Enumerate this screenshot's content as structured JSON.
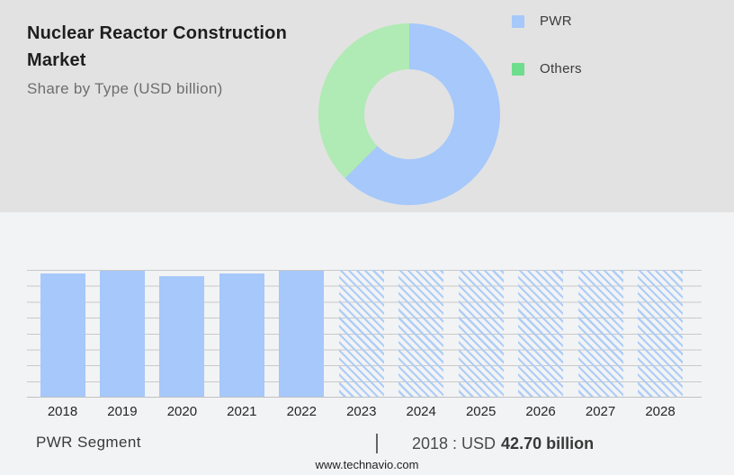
{
  "header": {
    "title": "Nuclear Reactor Construction Market",
    "subtitle": "Share by Type (USD billion)"
  },
  "legend": {
    "items": [
      {
        "label": "PWR",
        "color": "#a6c8fa"
      },
      {
        "label": "Others",
        "color": "#6edd8d"
      }
    ]
  },
  "stats": {
    "segment_label": "PWR Segment",
    "separator": "|",
    "prefix": "2018 : USD",
    "value": "42.70 billion"
  },
  "footer": {
    "website": "www.technavio.com"
  },
  "colors": {
    "top_background": "#e2e2e2",
    "bottom_background": "#f2f3f4",
    "bar_solid": "#a6c8fa",
    "bar_hatch_line": "#aecdf8",
    "gridline": "#c9c9c9",
    "legend_pwr": "#a6c8fa",
    "legend_others": "#6edd8d",
    "donut_pwr": "#a6c8fa",
    "donut_others": "#b0eab4"
  },
  "chart_data": [
    {
      "type": "pie",
      "subtype": "donut",
      "title": "Share by Type (USD billion)",
      "legend_position": "right",
      "segments": [
        {
          "label": "PWR",
          "value": 62.5,
          "color": "#a6c8fa"
        },
        {
          "label": "Others",
          "value": 37.5,
          "color": "#b0eab4"
        }
      ],
      "note": "percentages estimated from arc angles; PWR arc spans about 225 degrees starting at 12 o'clock clockwise"
    },
    {
      "type": "bar",
      "title": "PWR Segment (USD billion)",
      "categories": [
        "2018",
        "2019",
        "2020",
        "2021",
        "2022",
        "2023",
        "2024",
        "2025",
        "2026",
        "2027",
        "2028"
      ],
      "bars": [
        {
          "year": "2018",
          "value": 42.7,
          "style": "solid"
        },
        {
          "year": "2019",
          "value": 43.6,
          "style": "solid"
        },
        {
          "year": "2020",
          "value": 41.9,
          "style": "solid"
        },
        {
          "year": "2021",
          "value": 42.7,
          "style": "solid"
        },
        {
          "year": "2022",
          "value": 43.6,
          "style": "solid"
        },
        {
          "year": "2023",
          "value": 43.9,
          "style": "hatched"
        },
        {
          "year": "2024",
          "value": 43.9,
          "style": "hatched"
        },
        {
          "year": "2025",
          "value": 43.9,
          "style": "hatched"
        },
        {
          "year": "2026",
          "value": 43.9,
          "style": "hatched"
        },
        {
          "year": "2027",
          "value": 43.9,
          "style": "hatched"
        },
        {
          "year": "2028",
          "value": 43.9,
          "style": "hatched"
        }
      ],
      "ylim": [
        0,
        44
      ],
      "grid": true,
      "labeled_value": {
        "year": "2018",
        "text": "2018 : USD 42.70 billion"
      },
      "note": "only the 2018 value is labeled on the image; other values estimated from bar heights relative to gridlines; hatched bars are forecast years"
    }
  ]
}
